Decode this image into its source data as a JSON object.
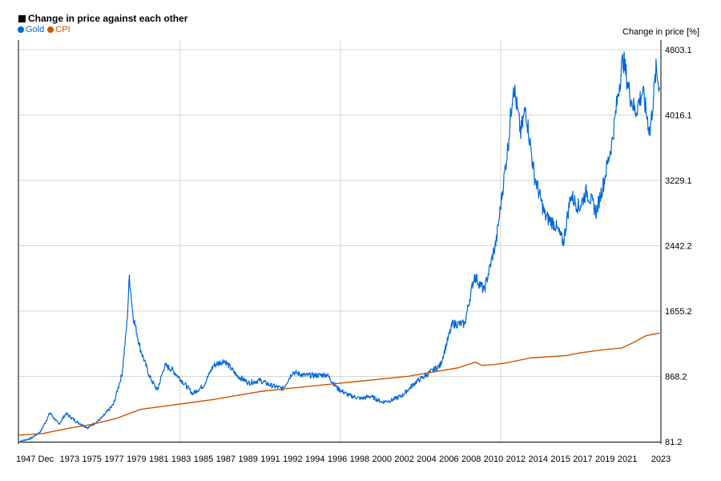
{
  "chart_data": {
    "type": "line",
    "title": "Change in price against each other",
    "ylabel": "Change in price [%]",
    "ylim": [
      81.2,
      4803.1
    ],
    "y_ticks": [
      "81.2",
      "868.2",
      "1655.2",
      "2442.2",
      "3229.1",
      "4016.1",
      "4803.1"
    ],
    "x_ticks": [
      "1947 Dec",
      "1973",
      "1975",
      "1977",
      "1979",
      "1981",
      "1983",
      "1985",
      "1987",
      "1989",
      "1991",
      "1992",
      "1994",
      "1996",
      "1998",
      "2000",
      "2002",
      "2004",
      "2006",
      "2008",
      "2010",
      "2012",
      "2014",
      "2015",
      "2017",
      "2019",
      "2021",
      "2023"
    ],
    "grid": true,
    "legend_position": "top-left",
    "series": [
      {
        "name": "Gold",
        "color": "#0066dd",
        "points": [
          [
            1971.0,
            81
          ],
          [
            1972.0,
            120
          ],
          [
            1972.8,
            200
          ],
          [
            1973.6,
            430
          ],
          [
            1974.3,
            290
          ],
          [
            1974.9,
            420
          ],
          [
            1975.8,
            320
          ],
          [
            1976.7,
            250
          ],
          [
            1977.8,
            360
          ],
          [
            1978.8,
            530
          ],
          [
            1979.5,
            900
          ],
          [
            1979.9,
            1500
          ],
          [
            1980.1,
            2080
          ],
          [
            1980.4,
            1600
          ],
          [
            1981.0,
            1200
          ],
          [
            1981.8,
            850
          ],
          [
            1982.4,
            700
          ],
          [
            1983.0,
            1000
          ],
          [
            1983.6,
            950
          ],
          [
            1984.5,
            800
          ],
          [
            1985.3,
            660
          ],
          [
            1986.2,
            760
          ],
          [
            1987.0,
            1000
          ],
          [
            1987.9,
            1060
          ],
          [
            1988.9,
            880
          ],
          [
            1989.9,
            790
          ],
          [
            1990.8,
            820
          ],
          [
            1991.7,
            760
          ],
          [
            1992.7,
            720
          ],
          [
            1993.5,
            920
          ],
          [
            1994.5,
            880
          ],
          [
            1995.5,
            880
          ],
          [
            1996.3,
            890
          ],
          [
            1997.2,
            720
          ],
          [
            1998.1,
            640
          ],
          [
            1999.1,
            600
          ],
          [
            1999.9,
            630
          ],
          [
            2000.8,
            560
          ],
          [
            2001.6,
            580
          ],
          [
            2002.5,
            640
          ],
          [
            2003.6,
            800
          ],
          [
            2004.6,
            900
          ],
          [
            2005.6,
            1000
          ],
          [
            2006.6,
            1500
          ],
          [
            2007.6,
            1500
          ],
          [
            2008.4,
            2080
          ],
          [
            2009.2,
            1900
          ],
          [
            2010.2,
            2500
          ],
          [
            2011.2,
            3700
          ],
          [
            2011.6,
            4400
          ],
          [
            2012.2,
            3800
          ],
          [
            2012.6,
            4100
          ],
          [
            2013.3,
            3300
          ],
          [
            2014.2,
            2800
          ],
          [
            2015.0,
            2700
          ],
          [
            2015.7,
            2480
          ],
          [
            2016.3,
            3050
          ],
          [
            2017.0,
            2900
          ],
          [
            2017.6,
            3100
          ],
          [
            2018.4,
            2850
          ],
          [
            2019.0,
            3200
          ],
          [
            2019.7,
            3700
          ],
          [
            2020.3,
            4400
          ],
          [
            2020.6,
            4700
          ],
          [
            2021.1,
            4300
          ],
          [
            2021.6,
            4050
          ],
          [
            2022.2,
            4300
          ],
          [
            2022.8,
            3800
          ],
          [
            2023.3,
            4550
          ],
          [
            2023.6,
            4350
          ]
        ]
      },
      {
        "name": "CPI",
        "color": "#cc5500",
        "points": [
          [
            1971.0,
            160
          ],
          [
            1973.0,
            180
          ],
          [
            1975.0,
            240
          ],
          [
            1977.0,
            290
          ],
          [
            1979.0,
            360
          ],
          [
            1981.0,
            470
          ],
          [
            1983.0,
            510
          ],
          [
            1985.0,
            550
          ],
          [
            1987.0,
            590
          ],
          [
            1989.0,
            640
          ],
          [
            1991.0,
            690
          ],
          [
            1993.0,
            720
          ],
          [
            1995.0,
            750
          ],
          [
            1997.0,
            780
          ],
          [
            1999.0,
            810
          ],
          [
            2001.0,
            840
          ],
          [
            2003.0,
            870
          ],
          [
            2005.0,
            920
          ],
          [
            2007.0,
            970
          ],
          [
            2008.5,
            1040
          ],
          [
            2009.0,
            1000
          ],
          [
            2010.0,
            1010
          ],
          [
            2011.0,
            1030
          ],
          [
            2013.0,
            1090
          ],
          [
            2015.0,
            1110
          ],
          [
            2016.0,
            1120
          ],
          [
            2017.0,
            1150
          ],
          [
            2019.0,
            1190
          ],
          [
            2020.5,
            1210
          ],
          [
            2021.5,
            1280
          ],
          [
            2022.5,
            1360
          ],
          [
            2023.6,
            1390
          ]
        ]
      }
    ]
  }
}
